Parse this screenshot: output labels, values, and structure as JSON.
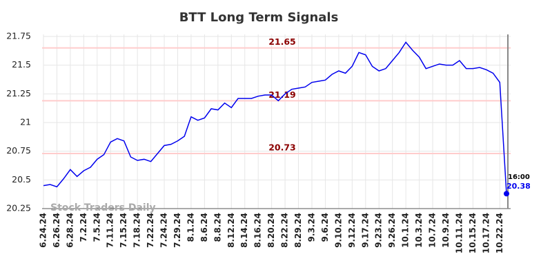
{
  "chart_data": {
    "type": "line",
    "title": "BTT Long Term Signals",
    "categories": [
      "6.24.24",
      null,
      "6.26.24",
      null,
      "6.28.24",
      null,
      "7.2.24",
      null,
      "7.5.24",
      null,
      "7.11.24",
      null,
      "7.15.24",
      null,
      "7.18.24",
      null,
      "7.22.24",
      null,
      "7.24.24",
      null,
      "7.29.24",
      null,
      "8.1.24",
      null,
      "8.6.24",
      null,
      "8.8.24",
      null,
      "8.12.24",
      null,
      "8.14.24",
      null,
      "8.16.24",
      null,
      "8.20.24",
      null,
      "8.22.24",
      null,
      "8.29.24",
      null,
      "9.3.24",
      null,
      "9.6.24",
      null,
      "9.10.24",
      null,
      "9.12.24",
      null,
      "9.17.24",
      null,
      "9.23.24",
      null,
      "9.26.24",
      null,
      "10.1.24",
      null,
      "10.3.24",
      null,
      "10.7.24",
      null,
      "10.9.24",
      null,
      "10.11.24",
      null,
      "10.15.24",
      null,
      "10.17.24",
      null,
      "10.22.24",
      null
    ],
    "series": [
      {
        "name": "BTT",
        "color": "#0000ee",
        "values": [
          20.45,
          20.46,
          20.44,
          20.51,
          20.59,
          20.53,
          20.58,
          20.61,
          20.68,
          20.72,
          20.83,
          20.86,
          20.84,
          20.7,
          20.67,
          20.68,
          20.66,
          20.73,
          20.8,
          20.81,
          20.84,
          20.88,
          21.05,
          21.02,
          21.04,
          21.12,
          21.11,
          21.17,
          21.13,
          21.21,
          21.21,
          21.21,
          21.23,
          21.24,
          21.24,
          21.19,
          21.25,
          21.29,
          21.3,
          21.31,
          21.35,
          21.36,
          21.37,
          21.42,
          21.45,
          21.43,
          21.49,
          21.61,
          21.59,
          21.49,
          21.45,
          21.47,
          21.54,
          21.61,
          21.7,
          21.63,
          21.57,
          21.47,
          21.49,
          21.51,
          21.5,
          21.5,
          21.54,
          21.47,
          21.47,
          21.48,
          21.46,
          21.43,
          21.35,
          20.38
        ]
      }
    ],
    "ylim": [
      20.25,
      21.75
    ],
    "yticks": [
      20.25,
      20.5,
      20.75,
      21,
      21.25,
      21.5,
      21.75
    ],
    "grid": true,
    "hlines": [
      21.65,
      21.19,
      20.73
    ],
    "hline_color": "#ffcccc",
    "hline_label_color": "#8b0000",
    "last_time_label": "16:00",
    "watermark": "Stock Traders Daily"
  }
}
